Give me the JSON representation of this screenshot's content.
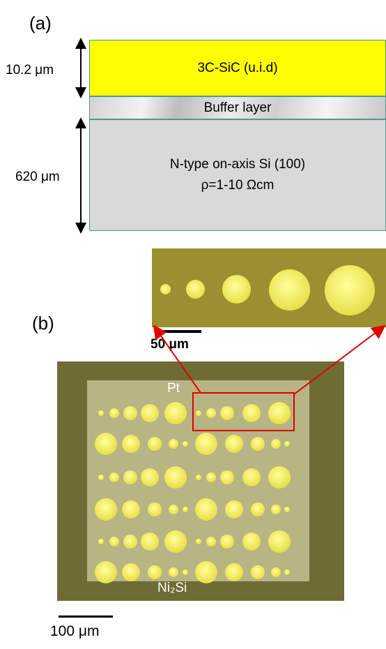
{
  "panel_a": {
    "label": "(a)",
    "layers": {
      "sic": "3C-SiC (u.i.d)",
      "buffer": "Buffer layer",
      "si_line1": "N-type on-axis Si (100)",
      "si_line2": "ρ=1-10 Ωcm"
    },
    "thickness": {
      "sic": "10.2 μm",
      "si": "620 μm"
    }
  },
  "panel_b": {
    "label": "(b)",
    "inset_scale": "50 μm",
    "chip_scale": "100 μm",
    "pad_top_label": "Pt",
    "pad_bottom_label": "Ni₂Si"
  },
  "colors": {
    "sic": "#ffff00",
    "si": "#d9d9d9",
    "highlight": "#e00000",
    "dots": "#e8e04a"
  }
}
